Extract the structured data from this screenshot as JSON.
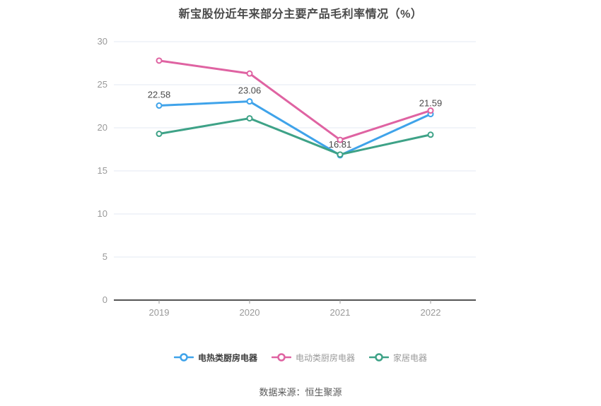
{
  "title": "新宝股份近年来部分主要产品毛利率情况（%）",
  "footer": "数据来源：恒生聚源",
  "chart_data": {
    "type": "line",
    "title": "新宝股份近年来部分主要产品毛利率情况（%）",
    "categories": [
      "2019",
      "2020",
      "2021",
      "2022"
    ],
    "series": [
      {
        "name": "电热类厨房电器",
        "color": "#3fa3ea",
        "values": [
          22.58,
          23.06,
          16.81,
          21.59
        ],
        "labels": [
          "22.58",
          "23.06",
          "16.81",
          "21.59"
        ],
        "show_labels": true,
        "legend_emphasis": true
      },
      {
        "name": "电动类厨房电器",
        "color": "#df63a2",
        "values": [
          27.8,
          26.3,
          18.6,
          22.0
        ],
        "labels": [],
        "show_labels": false,
        "legend_emphasis": false
      },
      {
        "name": "家居电器",
        "color": "#3ea287",
        "values": [
          19.3,
          21.1,
          16.9,
          19.2
        ],
        "labels": [],
        "show_labels": false,
        "legend_emphasis": false
      }
    ],
    "ylim": [
      0,
      30
    ],
    "yticks": [
      0,
      5,
      10,
      15,
      20,
      25,
      30
    ],
    "xlabel": "",
    "ylabel": "",
    "grid": "horizontal",
    "legend_position": "bottom",
    "colors": {
      "grid_line": "#e3e8f3",
      "axis_line": "#555555",
      "axis_tick": "#999999",
      "axis_label": "#999999",
      "data_label": "#4a4a4a",
      "background": "#ffffff"
    }
  }
}
